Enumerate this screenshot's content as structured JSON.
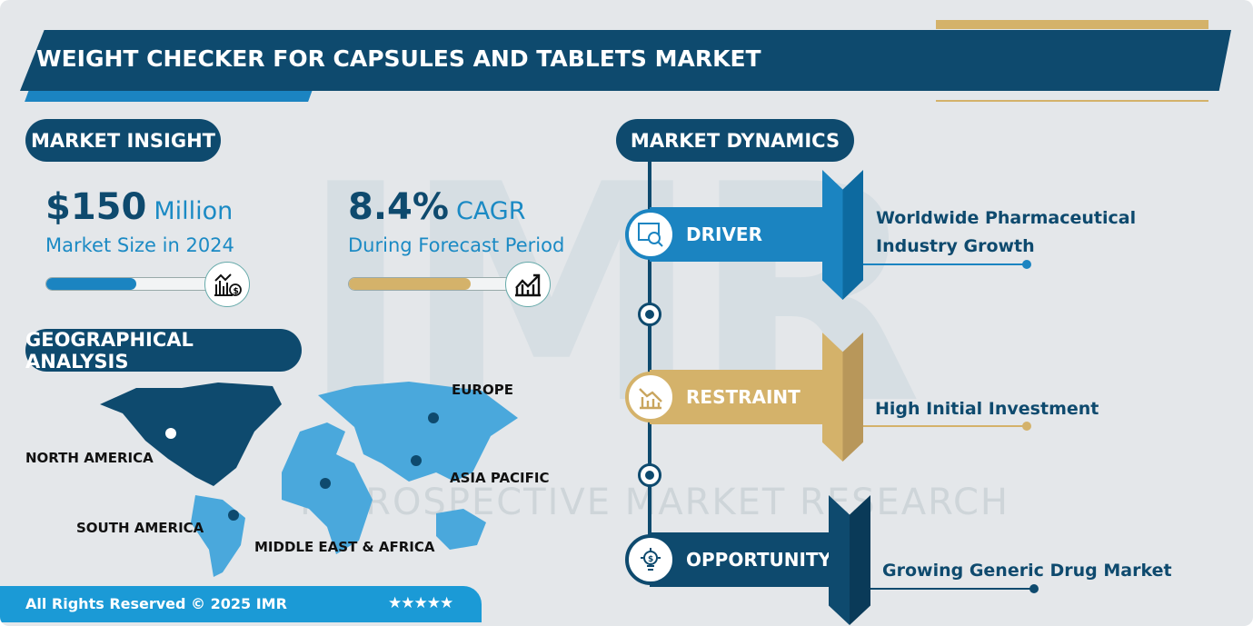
{
  "title": "WEIGHT CHECKER FOR CAPSULES AND TABLETS MARKET",
  "watermark": {
    "logo": "IMR",
    "text": "INTROSPECTIVE MARKET RESEARCH"
  },
  "insight": {
    "heading": "MARKET INSIGHT",
    "size": {
      "value": "$150",
      "unit": "Million",
      "label": "Market Size in 2024",
      "progress_pct": 50,
      "icon": "chart-dollar-icon"
    },
    "cagr": {
      "value": "8.4%",
      "unit": "CAGR",
      "label": "During Forecast Period",
      "progress_pct": 75,
      "icon": "growth-chart-icon"
    }
  },
  "geo": {
    "heading": "GEOGRAPHICAL ANALYSIS",
    "regions": [
      "NORTH AMERICA",
      "SOUTH AMERICA",
      "MIDDLE EAST & AFRICA",
      "ASIA PACIFIC",
      "EUROPE"
    ]
  },
  "dynamics": {
    "heading": "MARKET DYNAMICS",
    "items": [
      {
        "label": "DRIVER",
        "text1": "Worldwide Pharmaceutical",
        "text2": "Industry Growth",
        "color": "#1b84c1",
        "icon": "analytics-search-icon"
      },
      {
        "label": "RESTRAINT",
        "text1": "High Initial Investment",
        "text2": "",
        "color": "#d4b26a",
        "icon": "declining-chart-icon"
      },
      {
        "label": "OPPORTUNITY",
        "text1": "Growing Generic Drug Market",
        "text2": "",
        "color": "#0e4a6e",
        "icon": "lightbulb-dollar-icon"
      }
    ]
  },
  "footer": {
    "text": "All Rights Reserved © 2025 IMR",
    "stars": "★★★★★",
    "rating": 5
  },
  "colors": {
    "navy": "#0e4a6e",
    "blue": "#1b84c1",
    "gold": "#d4b26a",
    "bg": "#e4e7ea"
  }
}
